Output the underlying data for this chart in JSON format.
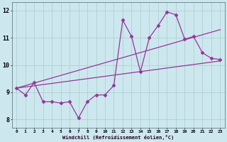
{
  "xlabel": "Windchill (Refroidissement éolien,°C)",
  "x_ticks": [
    0,
    1,
    2,
    3,
    4,
    5,
    6,
    7,
    8,
    9,
    10,
    11,
    12,
    13,
    14,
    15,
    16,
    17,
    18,
    19,
    20,
    21,
    22,
    23
  ],
  "ylim": [
    7.7,
    12.3
  ],
  "xlim": [
    -0.5,
    23.5
  ],
  "yticks": [
    8,
    9,
    10,
    11,
    12
  ],
  "background_color": "#cce8ee",
  "grid_color": "#aacccc",
  "line_color": "#993399",
  "line1_x": [
    0,
    1,
    2,
    3,
    4,
    5,
    6,
    7,
    8,
    9,
    10,
    11,
    12,
    13,
    14,
    15,
    16,
    17,
    18,
    19,
    20,
    21,
    22,
    23
  ],
  "line1_y": [
    9.15,
    8.9,
    9.35,
    8.65,
    8.65,
    8.6,
    8.65,
    8.05,
    8.65,
    8.9,
    8.9,
    9.25,
    11.65,
    11.05,
    9.75,
    11.0,
    11.45,
    11.95,
    11.85,
    10.95,
    11.05,
    10.45,
    10.25,
    10.2
  ],
  "line2_x": [
    0,
    23
  ],
  "line2_y": [
    9.15,
    11.3
  ],
  "line3_x": [
    0,
    23
  ],
  "line3_y": [
    9.15,
    10.15
  ]
}
